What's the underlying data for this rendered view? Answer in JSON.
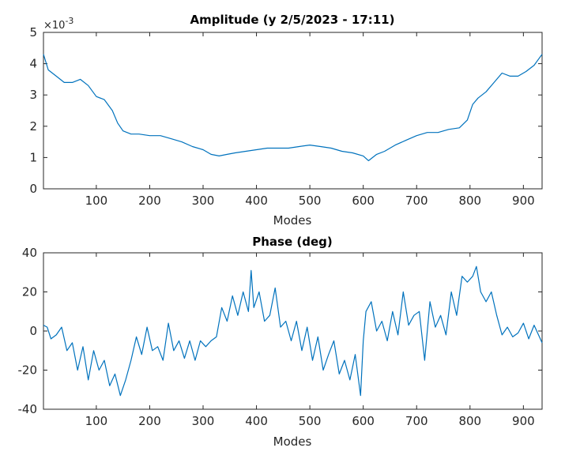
{
  "colors": {
    "series": "#0072BD",
    "axis": "#262626",
    "background": "#ffffff"
  },
  "chart_data": [
    {
      "type": "line",
      "title": "Amplitude (y 2/5/2023 - 17:11)",
      "xlabel": "Modes",
      "ylabel": "",
      "xlim": [
        1,
        935
      ],
      "ylim": [
        0,
        5
      ],
      "scale_note": "×10",
      "scale_exp": "-3",
      "xticks": [
        "100",
        "200",
        "300",
        "400",
        "500",
        "600",
        "700",
        "800",
        "900"
      ],
      "yticks": [
        "0",
        "1",
        "2",
        "3",
        "4",
        "5"
      ],
      "grid": false,
      "legend": "none",
      "x": [
        1,
        10,
        25,
        40,
        55,
        70,
        85,
        100,
        115,
        130,
        140,
        150,
        165,
        180,
        200,
        220,
        240,
        260,
        280,
        300,
        315,
        330,
        345,
        360,
        380,
        400,
        420,
        440,
        460,
        480,
        500,
        520,
        540,
        560,
        580,
        600,
        610,
        625,
        640,
        660,
        680,
        700,
        720,
        740,
        760,
        780,
        795,
        805,
        815,
        830,
        845,
        860,
        875,
        890,
        905,
        920,
        935
      ],
      "values": [
        4.3,
        3.8,
        3.6,
        3.4,
        3.4,
        3.5,
        3.3,
        2.95,
        2.85,
        2.5,
        2.1,
        1.85,
        1.75,
        1.75,
        1.7,
        1.7,
        1.6,
        1.5,
        1.35,
        1.25,
        1.1,
        1.05,
        1.1,
        1.15,
        1.2,
        1.25,
        1.3,
        1.3,
        1.3,
        1.35,
        1.4,
        1.35,
        1.3,
        1.2,
        1.15,
        1.05,
        0.9,
        1.1,
        1.2,
        1.4,
        1.55,
        1.7,
        1.8,
        1.8,
        1.9,
        1.95,
        2.2,
        2.7,
        2.9,
        3.1,
        3.4,
        3.7,
        3.6,
        3.6,
        3.75,
        3.95,
        4.3
      ]
    },
    {
      "type": "line",
      "title": "Phase (deg)",
      "xlabel": "Modes",
      "ylabel": "",
      "xlim": [
        1,
        935
      ],
      "ylim": [
        -40,
        40
      ],
      "xticks": [
        "100",
        "200",
        "300",
        "400",
        "500",
        "600",
        "700",
        "800",
        "900"
      ],
      "yticks": [
        "-40",
        "-20",
        "0",
        "20",
        "40"
      ],
      "grid": false,
      "legend": "none",
      "x": [
        1,
        8,
        15,
        25,
        35,
        45,
        55,
        65,
        75,
        85,
        95,
        105,
        115,
        125,
        135,
        145,
        155,
        165,
        175,
        185,
        195,
        205,
        215,
        225,
        235,
        245,
        255,
        265,
        275,
        285,
        295,
        305,
        315,
        325,
        335,
        345,
        355,
        365,
        375,
        385,
        390,
        395,
        405,
        415,
        425,
        435,
        445,
        455,
        465,
        475,
        485,
        495,
        505,
        515,
        525,
        535,
        545,
        555,
        565,
        575,
        585,
        595,
        600,
        605,
        615,
        625,
        635,
        645,
        655,
        665,
        675,
        685,
        695,
        705,
        715,
        725,
        735,
        745,
        755,
        765,
        775,
        785,
        795,
        805,
        812,
        820,
        830,
        840,
        850,
        860,
        870,
        880,
        890,
        900,
        910,
        920,
        930,
        935
      ],
      "values": [
        3,
        2,
        -4,
        -2,
        2,
        -10,
        -6,
        -20,
        -8,
        -25,
        -10,
        -20,
        -15,
        -28,
        -22,
        -33,
        -25,
        -15,
        -3,
        -12,
        2,
        -10,
        -8,
        -15,
        4,
        -10,
        -5,
        -14,
        -5,
        -15,
        -5,
        -8,
        -5,
        -3,
        12,
        5,
        18,
        8,
        20,
        10,
        31,
        12,
        20,
        5,
        8,
        22,
        2,
        5,
        -5,
        5,
        -10,
        2,
        -15,
        -3,
        -20,
        -12,
        -5,
        -22,
        -15,
        -25,
        -12,
        -33,
        -5,
        10,
        15,
        0,
        5,
        -5,
        10,
        -2,
        20,
        3,
        8,
        10,
        -15,
        15,
        2,
        8,
        -2,
        20,
        8,
        28,
        25,
        28,
        33,
        20,
        15,
        20,
        8,
        -2,
        2,
        -3,
        -1,
        4,
        -4,
        3,
        -3,
        -6
      ]
    }
  ]
}
